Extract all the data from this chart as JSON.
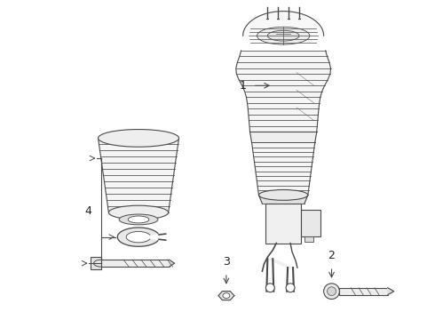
{
  "bg_color": "#ffffff",
  "line_color": "#4a4a4a",
  "fill_color": "#f5f5f5",
  "fill_dark": "#e0e0e0",
  "label_fontsize": 8,
  "figsize": [
    4.9,
    3.6
  ],
  "dpi": 100
}
